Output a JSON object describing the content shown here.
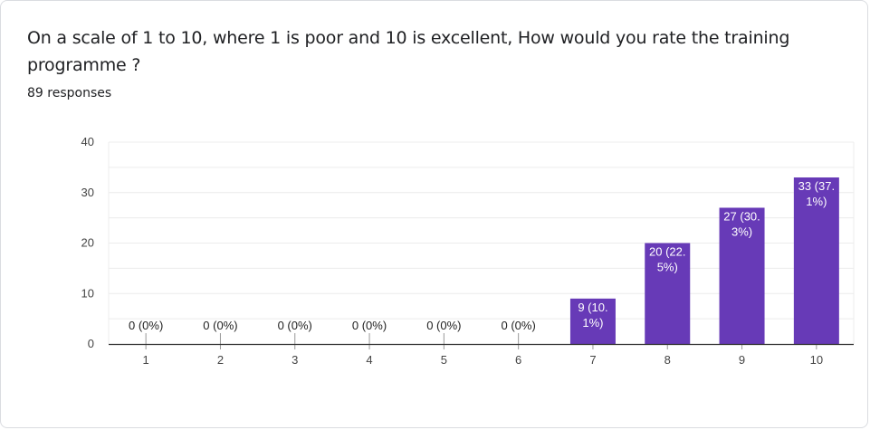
{
  "question": {
    "title": "On a scale of 1 to 10, where 1 is poor and 10 is excellent, How would you rate the training programme ?",
    "responses": "89 responses"
  },
  "colors": {
    "bar": "#673ab7",
    "grid": "#ececec",
    "axis": "#333333",
    "label_outside": "#222222",
    "label_inside": "#ffffff"
  },
  "chart_data": {
    "type": "bar",
    "title": "",
    "xlabel": "",
    "ylabel": "",
    "categories": [
      "1",
      "2",
      "3",
      "4",
      "5",
      "6",
      "7",
      "8",
      "9",
      "10"
    ],
    "values": [
      0,
      0,
      0,
      0,
      0,
      0,
      9,
      20,
      27,
      33
    ],
    "data_labels": [
      [
        "0 (0%)"
      ],
      [
        "0 (0%)"
      ],
      [
        "0 (0%)"
      ],
      [
        "0 (0%)"
      ],
      [
        "0 (0%)"
      ],
      [
        "0 (0%)"
      ],
      [
        "9 (10.",
        "1%)"
      ],
      [
        "20 (22.",
        "5%)"
      ],
      [
        "27 (30.",
        "3%)"
      ],
      [
        "33 (37.",
        "1%)"
      ]
    ],
    "ylim": [
      0,
      40
    ],
    "yticks": [
      0,
      10,
      20,
      30,
      40
    ],
    "grid": true,
    "legend": "none"
  }
}
